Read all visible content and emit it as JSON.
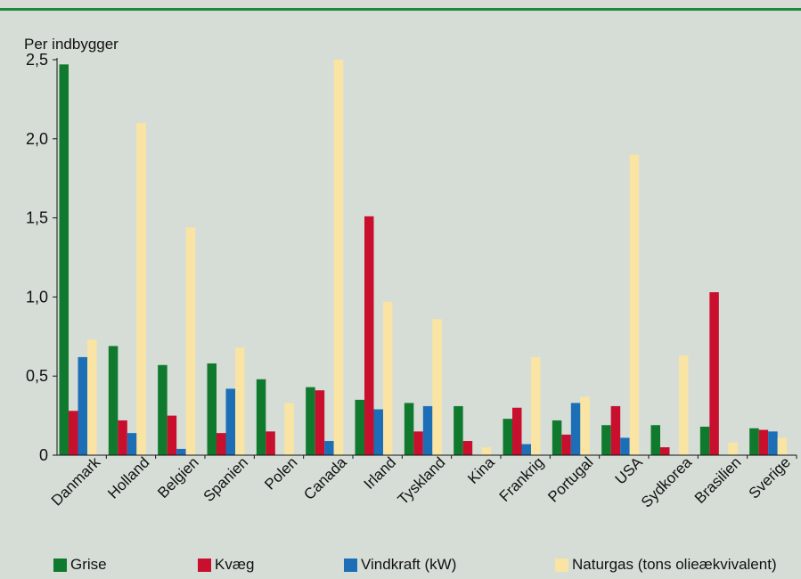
{
  "chart_data": {
    "type": "bar",
    "ylabel": "Per indbygger",
    "ylim": [
      0,
      2.5
    ],
    "yticks": [
      "0",
      "0,5",
      "1,0",
      "1,5",
      "2,0",
      "2,5"
    ],
    "categories": [
      "Danmark",
      "Holland",
      "Belgien",
      "Spanien",
      "Polen",
      "Canada",
      "Irland",
      "Tyskland",
      "Kina",
      "Frankrig",
      "Portugal",
      "USA",
      "Sydkorea",
      "Brasilien",
      "Sverige"
    ],
    "series": [
      {
        "name": "Grise",
        "color": "#0f7a2e",
        "values": [
          2.47,
          0.69,
          0.57,
          0.58,
          0.48,
          0.43,
          0.35,
          0.33,
          0.31,
          0.23,
          0.22,
          0.19,
          0.19,
          0.18,
          0.17
        ]
      },
      {
        "name": "Kvæg",
        "color": "#c8102e",
        "values": [
          0.28,
          0.22,
          0.25,
          0.14,
          0.15,
          0.41,
          1.51,
          0.15,
          0.09,
          0.3,
          0.13,
          0.31,
          0.05,
          1.03,
          0.16
        ]
      },
      {
        "name": "Vindkraft (kW)",
        "color": "#1c6fb6",
        "values": [
          0.62,
          0.14,
          0.04,
          0.42,
          0.0,
          0.09,
          0.29,
          0.31,
          0.0,
          0.07,
          0.33,
          0.11,
          0.0,
          0.0,
          0.15
        ]
      },
      {
        "name": "Naturgas (tons olieækvivalent)",
        "color": "#f9e4a3",
        "values": [
          0.73,
          2.1,
          1.44,
          0.68,
          0.33,
          2.5,
          0.97,
          0.86,
          0.05,
          0.62,
          0.37,
          1.9,
          0.63,
          0.08,
          0.11
        ]
      }
    ],
    "legend_position": "bottom"
  }
}
